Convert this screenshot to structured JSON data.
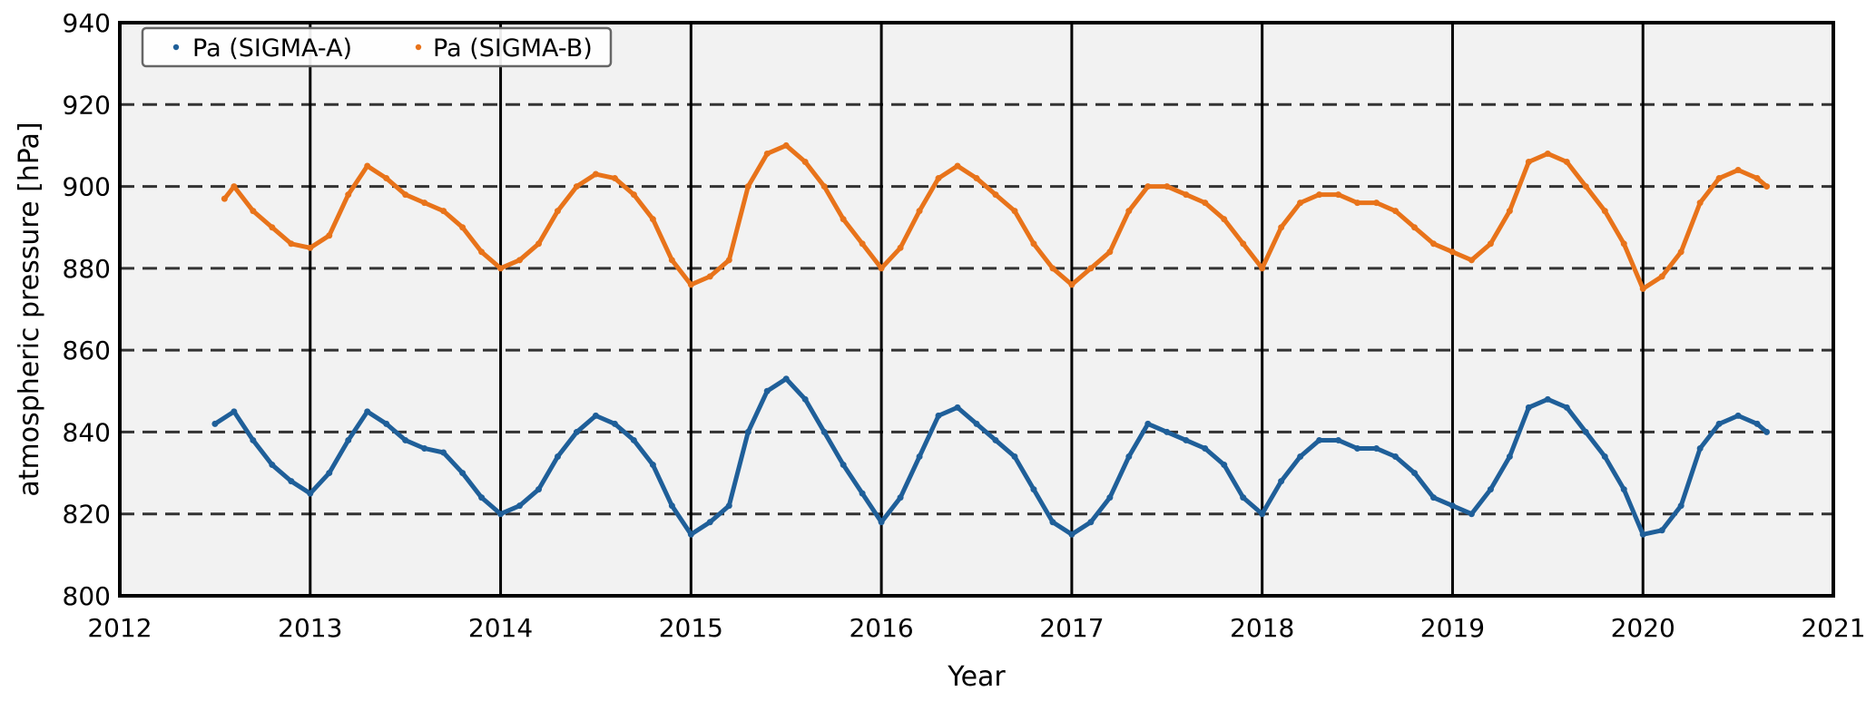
{
  "chart_data": {
    "type": "scatter",
    "xlabel": "Year",
    "ylabel": "atmospheric pressure [hPa]",
    "xlim": [
      2012,
      2021
    ],
    "ylim": [
      800,
      940
    ],
    "x_ticks": [
      2012,
      2013,
      2014,
      2015,
      2016,
      2017,
      2018,
      2019,
      2020,
      2021
    ],
    "y_ticks": [
      800,
      820,
      840,
      860,
      880,
      900,
      920,
      940
    ],
    "vertical_gridlines": [
      2013,
      2014,
      2015,
      2016,
      2017,
      2018,
      2019,
      2020
    ],
    "horizontal_gridlines_dashed": [
      820,
      840,
      860,
      880,
      900,
      920
    ],
    "grid": true,
    "legend_position": "top-left",
    "series": [
      {
        "name": "Pa (SIGMA-A)",
        "color": "#1f5f99",
        "x": [
          2012.5,
          2012.6,
          2012.7,
          2012.8,
          2012.9,
          2013.0,
          2013.1,
          2013.2,
          2013.3,
          2013.4,
          2013.5,
          2013.6,
          2013.7,
          2013.8,
          2013.9,
          2014.0,
          2014.1,
          2014.2,
          2014.3,
          2014.4,
          2014.5,
          2014.6,
          2014.7,
          2014.8,
          2014.9,
          2015.0,
          2015.1,
          2015.2,
          2015.3,
          2015.4,
          2015.5,
          2015.6,
          2015.7,
          2015.8,
          2015.9,
          2016.0,
          2016.1,
          2016.2,
          2016.3,
          2016.4,
          2016.5,
          2016.6,
          2016.7,
          2016.8,
          2016.9,
          2017.0,
          2017.1,
          2017.2,
          2017.3,
          2017.4,
          2017.5,
          2017.6,
          2017.7,
          2017.8,
          2017.9,
          2018.0,
          2018.1,
          2018.2,
          2018.3,
          2018.4,
          2018.5,
          2018.6,
          2018.7,
          2018.8,
          2018.9,
          2019.0,
          2019.1,
          2019.2,
          2019.3,
          2019.4,
          2019.5,
          2019.6,
          2019.7,
          2019.8,
          2019.9,
          2020.0,
          2020.1,
          2020.2,
          2020.3,
          2020.4,
          2020.5,
          2020.6,
          2020.65
        ],
        "y": [
          842,
          845,
          838,
          832,
          828,
          825,
          830,
          838,
          845,
          842,
          838,
          836,
          835,
          830,
          824,
          820,
          822,
          826,
          834,
          840,
          844,
          842,
          838,
          832,
          822,
          815,
          818,
          822,
          840,
          850,
          853,
          848,
          840,
          832,
          825,
          818,
          824,
          834,
          844,
          846,
          842,
          838,
          834,
          826,
          818,
          815,
          818,
          824,
          834,
          842,
          840,
          838,
          836,
          832,
          824,
          820,
          828,
          834,
          838,
          838,
          836,
          836,
          834,
          830,
          824,
          822,
          820,
          826,
          834,
          846,
          848,
          846,
          840,
          834,
          826,
          815,
          816,
          822,
          836,
          842,
          844,
          842,
          840
        ]
      },
      {
        "name": "Pa (SIGMA-B)",
        "color": "#e8731a",
        "x": [
          2012.55,
          2012.6,
          2012.7,
          2012.8,
          2012.9,
          2013.0,
          2013.1,
          2013.2,
          2013.3,
          2013.4,
          2013.5,
          2013.6,
          2013.7,
          2013.8,
          2013.9,
          2014.0,
          2014.1,
          2014.2,
          2014.3,
          2014.4,
          2014.5,
          2014.6,
          2014.7,
          2014.8,
          2014.9,
          2015.0,
          2015.1,
          2015.2,
          2015.3,
          2015.4,
          2015.5,
          2015.6,
          2015.7,
          2015.8,
          2015.9,
          2016.0,
          2016.1,
          2016.2,
          2016.3,
          2016.4,
          2016.5,
          2016.6,
          2016.7,
          2016.8,
          2016.9,
          2017.0,
          2017.1,
          2017.2,
          2017.3,
          2017.4,
          2017.5,
          2017.6,
          2017.7,
          2017.8,
          2017.9,
          2018.0,
          2018.1,
          2018.2,
          2018.3,
          2018.4,
          2018.5,
          2018.6,
          2018.7,
          2018.8,
          2018.9,
          2019.0,
          2019.1,
          2019.2,
          2019.3,
          2019.4,
          2019.5,
          2019.6,
          2019.7,
          2019.8,
          2019.9,
          2020.0,
          2020.1,
          2020.2,
          2020.3,
          2020.4,
          2020.5,
          2020.6,
          2020.65
        ],
        "y": [
          897,
          900,
          894,
          890,
          886,
          885,
          888,
          898,
          905,
          902,
          898,
          896,
          894,
          890,
          884,
          880,
          882,
          886,
          894,
          900,
          903,
          902,
          898,
          892,
          882,
          876,
          878,
          882,
          900,
          908,
          910,
          906,
          900,
          892,
          886,
          880,
          885,
          894,
          902,
          905,
          902,
          898,
          894,
          886,
          880,
          876,
          880,
          884,
          894,
          900,
          900,
          898,
          896,
          892,
          886,
          880,
          890,
          896,
          898,
          898,
          896,
          896,
          894,
          890,
          886,
          884,
          882,
          886,
          894,
          906,
          908,
          906,
          900,
          894,
          886,
          875,
          878,
          884,
          896,
          902,
          904,
          902,
          900
        ]
      }
    ]
  }
}
